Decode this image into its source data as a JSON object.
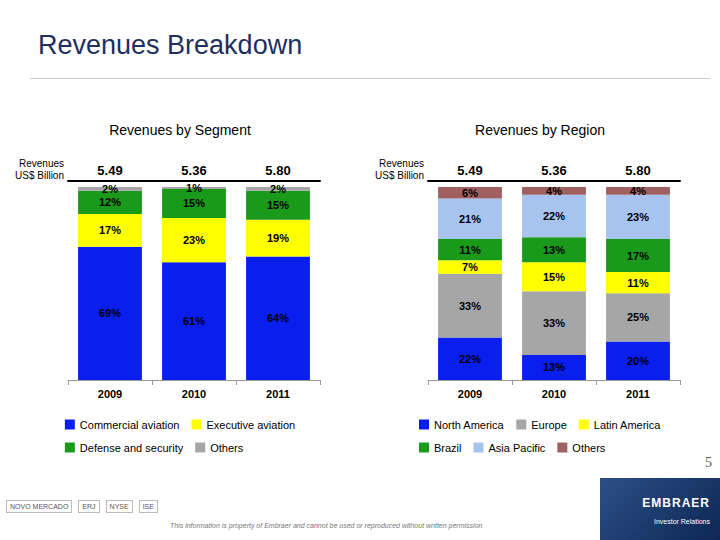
{
  "title": "Revenues Breakdown",
  "chart_data": [
    {
      "type": "bar",
      "stacked": true,
      "title": "Revenues by Segment",
      "categories": [
        "2009",
        "2010",
        "2011"
      ],
      "ylim": [
        0,
        100
      ],
      "tick_labels": "x",
      "data_labels": true,
      "legend": "bottom",
      "totals": {
        "label": "Revenues\nUS$ Billion",
        "values": [
          5.49,
          5.36,
          5.8
        ],
        "value_labels": [
          "5.49",
          "5.36",
          "5.80"
        ]
      },
      "series": [
        {
          "name": "Commercial aviation",
          "color": "#0a1ef0",
          "values": [
            69,
            61,
            64
          ],
          "value_labels": [
            "69%",
            "61%",
            "64%"
          ]
        },
        {
          "name": "Executive aviation",
          "color": "#ffff00",
          "values": [
            17,
            23,
            19
          ],
          "value_labels": [
            "17%",
            "23%",
            "19%"
          ]
        },
        {
          "name": "Defense and security",
          "color": "#1a9a1a",
          "values": [
            12,
            15,
            15
          ],
          "value_labels": [
            "12%",
            "15%",
            "15%"
          ]
        },
        {
          "name": "Others",
          "color": "#a6a6a6",
          "values": [
            2,
            1,
            2
          ],
          "value_labels": [
            "2%",
            "1%",
            "2%"
          ]
        }
      ]
    },
    {
      "type": "bar",
      "stacked": true,
      "title": "Revenues by Region",
      "categories": [
        "2009",
        "2010",
        "2011"
      ],
      "ylim": [
        0,
        100
      ],
      "tick_labels": "x",
      "data_labels": true,
      "legend": "bottom",
      "totals": {
        "label": "Revenues\nUS$ Billion",
        "values": [
          5.49,
          5.36,
          5.8
        ],
        "value_labels": [
          "5.49",
          "5.36",
          "5.80"
        ]
      },
      "series": [
        {
          "name": "North America",
          "color": "#0a1ef0",
          "values": [
            22,
            13,
            20
          ],
          "value_labels": [
            "22%",
            "13%",
            "20%"
          ]
        },
        {
          "name": "Europe",
          "color": "#a6a6a6",
          "values": [
            33,
            33,
            25
          ],
          "value_labels": [
            "33%",
            "33%",
            "25%"
          ]
        },
        {
          "name": "Latin America",
          "color": "#ffff00",
          "values": [
            7,
            15,
            11
          ],
          "value_labels": [
            "7%",
            "15%",
            "11%"
          ]
        },
        {
          "name": "Brazil",
          "color": "#1a9a1a",
          "values": [
            11,
            13,
            17
          ],
          "value_labels": [
            "11%",
            "13%",
            "17%"
          ]
        },
        {
          "name": "Asia Pacific",
          "color": "#a7c4ee",
          "values": [
            21,
            22,
            23
          ],
          "value_labels": [
            "21%",
            "22%",
            "23%"
          ]
        },
        {
          "name": "Others",
          "color": "#a06060",
          "values": [
            6,
            4,
            4
          ],
          "value_labels": [
            "6%",
            "4%",
            "4%"
          ]
        }
      ]
    }
  ],
  "page_number": 5,
  "footer": "This information is property of Embraer and cannot be used or reproduced without written permission",
  "logo": {
    "name": "EMBRAER",
    "subtitle": "Investor Relations"
  },
  "listing_logos": [
    "NOVO MERCADO",
    "ERJ",
    "NYSE",
    "ISE"
  ]
}
